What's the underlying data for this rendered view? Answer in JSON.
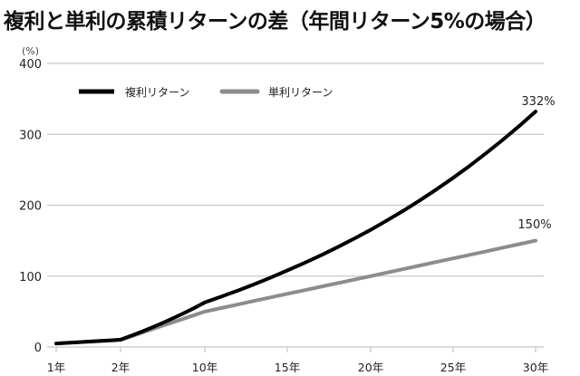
{
  "title": "複利と単利の累積リターンの差（年間リターン5%の場合）",
  "chart_data": {
    "type": "line",
    "title": "複利と単利の累積リターンの差（年間リターン5%の場合）",
    "xlabel": "",
    "ylabel": "(%)",
    "y_unit": "(%)",
    "ylim": [
      0,
      400
    ],
    "y_ticks": [
      0,
      100,
      200,
      300,
      400
    ],
    "x_ticks": [
      {
        "year": 1,
        "label": "1年"
      },
      {
        "year": 2,
        "label": "2年"
      },
      {
        "year": 10,
        "label": "10年"
      },
      {
        "year": 15,
        "label": "15年"
      },
      {
        "year": 20,
        "label": "20年"
      },
      {
        "year": 25,
        "label": "25年"
      },
      {
        "year": 30,
        "label": "30年"
      }
    ],
    "grid": true,
    "legend_position": "top-left",
    "series": [
      {
        "name": "複利リターン",
        "color": "#000000",
        "x": [
          1,
          2,
          3,
          4,
          5,
          6,
          7,
          8,
          9,
          10,
          11,
          12,
          13,
          14,
          15,
          16,
          17,
          18,
          19,
          20,
          21,
          22,
          23,
          24,
          25,
          26,
          27,
          28,
          29,
          30
        ],
        "values": [
          5,
          10.3,
          15.8,
          21.6,
          27.6,
          34,
          40.7,
          47.7,
          55.1,
          62.9,
          71,
          79.6,
          88.6,
          98,
          108,
          118.3,
          129.2,
          140.7,
          152.7,
          165.3,
          178.6,
          192.5,
          207.1,
          222.5,
          238.6,
          255.5,
          273.3,
          292,
          311.6,
          332.2
        ],
        "end_label": "332%"
      },
      {
        "name": "単利リターン",
        "color": "#8c8c8c",
        "x": [
          1,
          2,
          3,
          4,
          5,
          6,
          7,
          8,
          9,
          10,
          11,
          12,
          13,
          14,
          15,
          16,
          17,
          18,
          19,
          20,
          21,
          22,
          23,
          24,
          25,
          26,
          27,
          28,
          29,
          30
        ],
        "values": [
          5,
          10,
          15,
          20,
          25,
          30,
          35,
          40,
          45,
          50,
          55,
          60,
          65,
          70,
          75,
          80,
          85,
          90,
          95,
          100,
          105,
          110,
          115,
          120,
          125,
          130,
          135,
          140,
          145,
          150
        ],
        "end_label": "150%"
      }
    ]
  },
  "legend": {
    "items": [
      {
        "label": "複利リターン",
        "color": "#000000"
      },
      {
        "label": "単利リターン",
        "color": "#8c8c8c"
      }
    ]
  },
  "colors": {
    "grid": "#c8c8c8",
    "compound": "#000000",
    "simple": "#8c8c8c"
  }
}
